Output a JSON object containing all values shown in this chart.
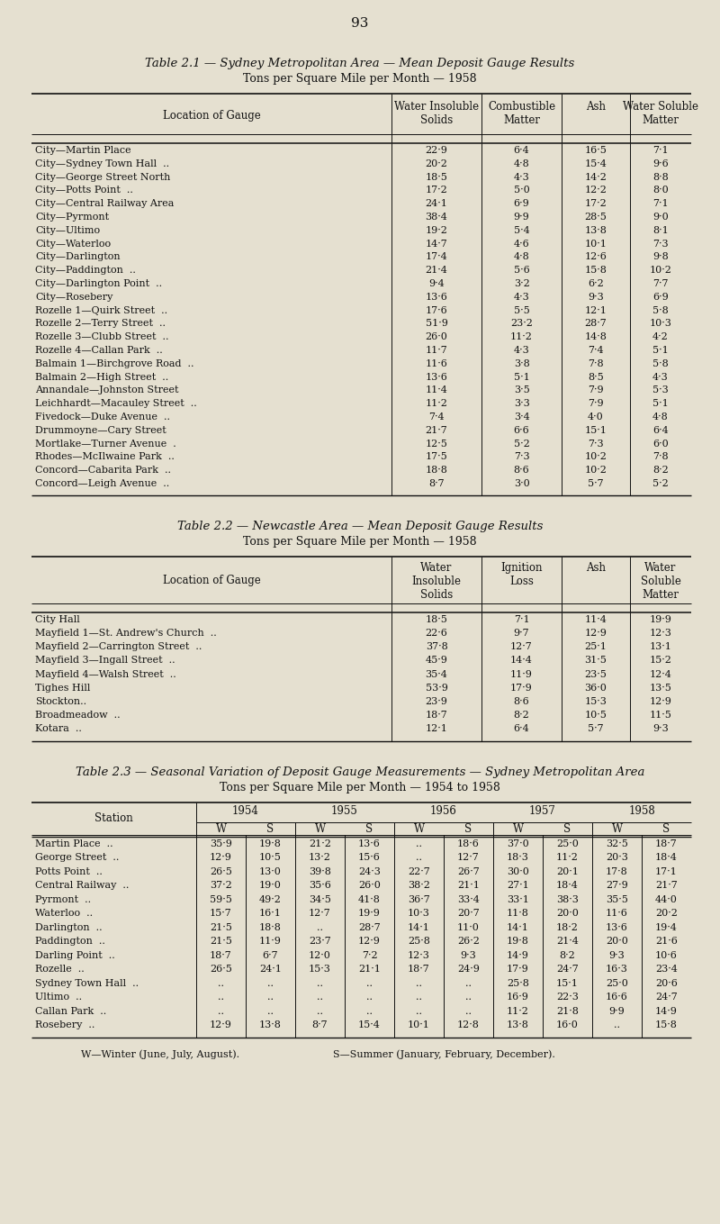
{
  "page_number": "93",
  "bg_color": "#e5e0d0",
  "text_color": "#111111",
  "table1_title": "Table 2.1 — Sydney Metropolitan Area — Mean Deposit Gauge Results",
  "table1_subtitle": "Tons per Square Mile per Month — 1958",
  "table1_headers": [
    "Location of Gauge",
    "Water Insoluble\nSolids",
    "Combustible\nMatter",
    "Ash",
    "Water Soluble\nMatter"
  ],
  "table1_rows": [
    [
      "City—Martin Place",
      "22·9",
      "6·4",
      "16·5",
      "7·1"
    ],
    [
      "City—Sydney Town Hall  ..",
      "20·2",
      "4·8",
      "15·4",
      "9·6"
    ],
    [
      "City—George Street North",
      "18·5",
      "4·3",
      "14·2",
      "8·8"
    ],
    [
      "City—Potts Point  ..",
      "17·2",
      "5·0",
      "12·2",
      "8·0"
    ],
    [
      "City—Central Railway Area",
      "24·1",
      "6·9",
      "17·2",
      "7·1"
    ],
    [
      "City—Pyrmont",
      "38·4",
      "9·9",
      "28·5",
      "9·0"
    ],
    [
      "City—Ultimo",
      "19·2",
      "5·4",
      "13·8",
      "8·1"
    ],
    [
      "City—Waterloo",
      "14·7",
      "4·6",
      "10·1",
      "7·3"
    ],
    [
      "City—Darlington",
      "17·4",
      "4·8",
      "12·6",
      "9·8"
    ],
    [
      "City—Paddington  ..",
      "21·4",
      "5·6",
      "15·8",
      "10·2"
    ],
    [
      "City—Darlington Point  ..",
      "9·4",
      "3·2",
      "6·2",
      "7·7"
    ],
    [
      "City—Rosebery",
      "13·6",
      "4·3",
      "9·3",
      "6·9"
    ],
    [
      "Rozelle 1—Quirk Street  ..",
      "17·6",
      "5·5",
      "12·1",
      "5·8"
    ],
    [
      "Rozelle 2—Terry Street  ..",
      "51·9",
      "23·2",
      "28·7",
      "10·3"
    ],
    [
      "Rozelle 3—Clubb Street  ..",
      "26·0",
      "11·2",
      "14·8",
      "4·2"
    ],
    [
      "Rozelle 4—Callan Park  ..",
      "11·7",
      "4·3",
      "7·4",
      "5·1"
    ],
    [
      "Balmain 1—Birchgrove Road  ..",
      "11·6",
      "3·8",
      "7·8",
      "5·8"
    ],
    [
      "Balmain 2—High Street  ..",
      "13·6",
      "5·1",
      "8·5",
      "4·3"
    ],
    [
      "Annandale—Johnston Street",
      "11·4",
      "3·5",
      "7·9",
      "5·3"
    ],
    [
      "Leichhardt—Macauley Street  ..",
      "11·2",
      "3·3",
      "7·9",
      "5·1"
    ],
    [
      "Fivedock—Duke Avenue  ..",
      "7·4",
      "3·4",
      "4·0",
      "4·8"
    ],
    [
      "Drummoyne—Cary Street",
      "21·7",
      "6·6",
      "15·1",
      "6·4"
    ],
    [
      "Mortlake—Turner Avenue  .",
      "12·5",
      "5·2",
      "7·3",
      "6·0"
    ],
    [
      "Rhodes—McIlwaine Park  ..",
      "17·5",
      "7·3",
      "10·2",
      "7·8"
    ],
    [
      "Concord—Cabarita Park  ..",
      "18·8",
      "8·6",
      "10·2",
      "8·2"
    ],
    [
      "Concord—Leigh Avenue  ..",
      "8·7",
      "3·0",
      "5·7",
      "5·2"
    ]
  ],
  "table2_title": "Table 2.2 — Newcastle Area — Mean Deposit Gauge Results",
  "table2_subtitle": "Tons per Square Mile per Month — 1958",
  "table2_headers": [
    "Location of Gauge",
    "Water\nInsoluble\nSolids",
    "Ignition\nLoss",
    "Ash",
    "Water\nSoluble\nMatter"
  ],
  "table2_rows": [
    [
      "City Hall",
      "18·5",
      "7·1",
      "11·4",
      "19·9"
    ],
    [
      "Mayfield 1—St. Andrew's Church  ..",
      "22·6",
      "9·7",
      "12·9",
      "12·3"
    ],
    [
      "Mayfield 2—Carrington Street  ..",
      "37·8",
      "12·7",
      "25·1",
      "13·1"
    ],
    [
      "Mayfield 3—Ingall Street  ..",
      "45·9",
      "14·4",
      "31·5",
      "15·2"
    ],
    [
      "Mayfield 4—Walsh Street  ..",
      "35·4",
      "11·9",
      "23·5",
      "12·4"
    ],
    [
      "Tighes Hill",
      "53·9",
      "17·9",
      "36·0",
      "13·5"
    ],
    [
      "Stockton..",
      "23·9",
      "8·6",
      "15·3",
      "12·9"
    ],
    [
      "Broadmeadow  ..",
      "18·7",
      "8·2",
      "10·5",
      "11·5"
    ],
    [
      "Kotara  ..",
      "12·1",
      "6·4",
      "5·7",
      "9·3"
    ]
  ],
  "table3_title": "Table 2.3 — Seasonal Variation of Deposit Gauge Measurements — Sydney Metropolitan Area",
  "table3_subtitle": "Tons per Square Mile per Month — 1954 to 1958",
  "table3_year_headers": [
    "1954",
    "1955",
    "1956",
    "1957",
    "1958"
  ],
  "table3_ws_headers": [
    "W",
    "S",
    "W",
    "S",
    "W",
    "S",
    "W",
    "S",
    "W",
    "S"
  ],
  "table3_stations": [
    "Martin Place  ..",
    "George Street  ..",
    "Potts Point  ..",
    "Central Railway  ..",
    "Pyrmont  ..",
    "Waterloo  ..",
    "Darlington  ..",
    "Paddington  ..",
    "Darling Point  ..",
    "Rozelle  ..",
    "Sydney Town Hall  ..",
    "Ultimo  ..",
    "Callan Park  ..",
    "Rosebery  .."
  ],
  "table3_data": [
    [
      "35·9",
      "19·8",
      "21·2",
      "13·6",
      "..",
      "18·6",
      "37·0",
      "25·0",
      "32·5",
      "18·7"
    ],
    [
      "12·9",
      "10·5",
      "13·2",
      "15·6",
      "..",
      "12·7",
      "18·3",
      "11·2",
      "20·3",
      "18·4"
    ],
    [
      "26·5",
      "13·0",
      "39·8",
      "24·3",
      "22·7",
      "26·7",
      "30·0",
      "20·1",
      "17·8",
      "17·1"
    ],
    [
      "37·2",
      "19·0",
      "35·6",
      "26·0",
      "38·2",
      "21·1",
      "27·1",
      "18·4",
      "27·9",
      "21·7"
    ],
    [
      "59·5",
      "49·2",
      "34·5",
      "41·8",
      "36·7",
      "33·4",
      "33·1",
      "38·3",
      "35·5",
      "44·0"
    ],
    [
      "15·7",
      "16·1",
      "12·7",
      "19·9",
      "10·3",
      "20·7",
      "11·8",
      "20·0",
      "11·6",
      "20·2"
    ],
    [
      "21·5",
      "18·8",
      "..",
      "28·7",
      "14·1",
      "11·0",
      "14·1",
      "18·2",
      "13·6",
      "19·4"
    ],
    [
      "21·5",
      "11·9",
      "23·7",
      "12·9",
      "25·8",
      "26·2",
      "19·8",
      "21·4",
      "20·0",
      "21·6"
    ],
    [
      "18·7",
      "6·7",
      "12·0",
      "7·2",
      "12·3",
      "9·3",
      "14·9",
      "8·2",
      "9·3",
      "10·6"
    ],
    [
      "26·5",
      "24·1",
      "15·3",
      "21·1",
      "18·7",
      "24·9",
      "17·9",
      "24·7",
      "16·3",
      "23·4"
    ],
    [
      "..",
      "..",
      "..",
      "..",
      "..",
      "..",
      "25·8",
      "15·1",
      "25·0",
      "20·6"
    ],
    [
      "..",
      "..",
      "..",
      "..",
      "..",
      "..",
      "16·9",
      "22·3",
      "16·6",
      "24·7"
    ],
    [
      "..",
      "..",
      "..",
      "..",
      "..",
      "..",
      "11·2",
      "21·8",
      "9·9",
      "14·9"
    ],
    [
      "12·9",
      "13·8",
      "8·7",
      "15·4",
      "10·1",
      "12·8",
      "13·8",
      "16·0",
      "..",
      "15·8"
    ]
  ],
  "table3_footnote1": "W—Winter (June, July, August).",
  "table3_footnote2": "S—Summer (January, February, December)."
}
